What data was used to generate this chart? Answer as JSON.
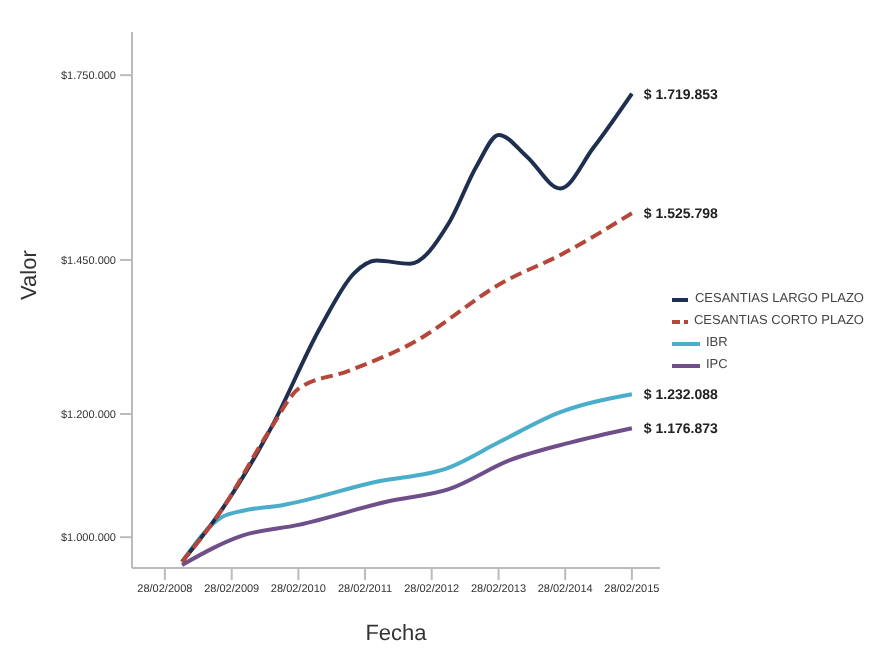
{
  "chart_data": {
    "type": "line",
    "xlabel": "Fecha",
    "ylabel": "Valor",
    "xlim": [
      "2007-09",
      "2015-08"
    ],
    "xticks": [
      {
        "value": "2008-02-28",
        "label": "28/02/2008"
      },
      {
        "value": "2009-02-28",
        "label": "28/02/2009"
      },
      {
        "value": "2010-02-28",
        "label": "28/02/2010"
      },
      {
        "value": "2011-02-28",
        "label": "28/02/2011"
      },
      {
        "value": "2012-02-28",
        "label": "28/02/2012"
      },
      {
        "value": "2013-02-28",
        "label": "28/02/2013"
      },
      {
        "value": "2014-02-28",
        "label": "28/02/2014"
      },
      {
        "value": "2015-02-28",
        "label": "28/02/2015"
      }
    ],
    "ylim": [
      950000,
      1820000
    ],
    "yticks": [
      {
        "value": 1000000,
        "label": "$1.000.000"
      },
      {
        "value": 1200000,
        "label": "$1.200.000"
      },
      {
        "value": 1450000,
        "label": "$1.450.000"
      },
      {
        "value": 1750000,
        "label": "$1.750.000"
      }
    ],
    "grid": false,
    "legend": "right",
    "marker": "none",
    "series": [
      {
        "name": "CESANTIAS LARGO PLAZO",
        "color": "#1f2f4f",
        "line_style": "solid",
        "x": [
          "2008-06",
          "2009-01",
          "2009-10",
          "2010-07",
          "2011-01",
          "2011-05",
          "2011-11",
          "2012-06",
          "2012-11",
          "2013-03",
          "2013-08",
          "2014-02",
          "2014-08",
          "2015-02-28"
        ],
        "values": [
          960000,
          1043000,
          1177000,
          1342000,
          1429000,
          1449000,
          1444000,
          1510000,
          1603000,
          1653000,
          1618000,
          1566000,
          1632000,
          1719853
        ]
      },
      {
        "name": "CESANTIAS CORTO PLAZO",
        "color": "#b5473a",
        "line_style": "dashed",
        "x": [
          "2008-06",
          "2009-01",
          "2009-10",
          "2010-03",
          "2010-12",
          "2011-11",
          "2013-04",
          "2014-02",
          "2015-02-28"
        ],
        "values": [
          960000,
          1043000,
          1177000,
          1241000,
          1270000,
          1313000,
          1415000,
          1458000,
          1525798
        ]
      },
      {
        "name": "IBR",
        "color": "#4aaecb",
        "line_style": "solid",
        "x": [
          "2008-06",
          "2009-01",
          "2009-05",
          "2009-12",
          "2011-05",
          "2012-06",
          "2013-03",
          "2014-02",
          "2015-02-28"
        ],
        "values": [
          960000,
          1032000,
          1043000,
          1052000,
          1090000,
          1113000,
          1154000,
          1203000,
          1232088
        ]
      },
      {
        "name": "IPC",
        "color": "#6e4f8a",
        "line_style": "solid",
        "x": [
          "2008-06",
          "2009-05",
          "2010-03",
          "2011-07",
          "2012-06",
          "2013-05",
          "2014-04",
          "2015-02-28"
        ],
        "values": [
          955000,
          1003000,
          1020000,
          1058000,
          1078000,
          1125000,
          1154000,
          1176873
        ]
      }
    ],
    "annotations": [
      {
        "text": "$ 1.719.853",
        "x": "2015-02-28",
        "y": 1719853
      },
      {
        "text": "$ 1.525.798",
        "x": "2015-02-28",
        "y": 1525798
      },
      {
        "text": "$ 1.232.088",
        "x": "2015-02-28",
        "y": 1232088
      },
      {
        "text": "$ 1.176.873",
        "x": "2015-02-28",
        "y": 1176873
      }
    ]
  }
}
